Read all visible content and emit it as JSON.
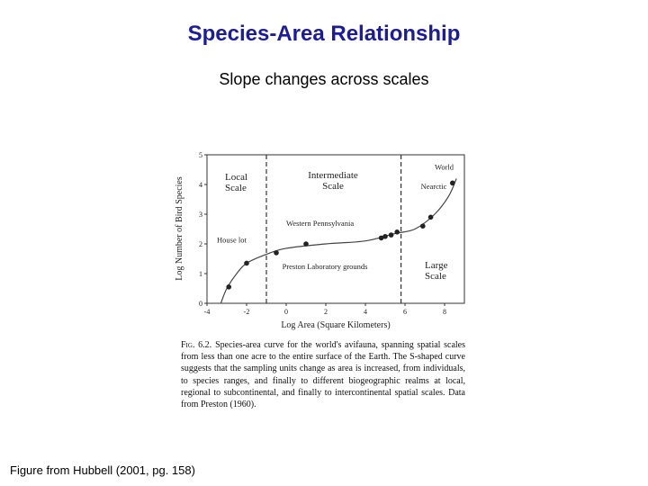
{
  "slide": {
    "title": "Species-Area Relationship",
    "subtitle": "Slope changes across scales",
    "credit": "Figure from Hubbell (2001, pg. 158)"
  },
  "figure": {
    "caption_label": "Fig. 6.2.",
    "caption_text": "Species-area curve for the world's avifauna, spanning spatial scales from less than one acre to the entire surface of the Earth. The S-shaped curve suggests that the sampling units change as area is increased, from individuals, to species ranges, and finally to different biogeographic realms at local, regional to subcontinental, and finally to intercontinental spatial scales. Data from Preston (1960)."
  },
  "chart_data": {
    "type": "scatter",
    "title": "",
    "xlabel": "Log Area (Square Kilometers)",
    "ylabel": "Log Number of Bird Species",
    "xlim": [
      -4,
      9
    ],
    "ylim": [
      0,
      5
    ],
    "x_ticks": [
      -4,
      -2,
      0,
      2,
      4,
      6,
      8
    ],
    "y_ticks": [
      0,
      1,
      2,
      3,
      4,
      5
    ],
    "scale_boundaries": [
      -1,
      5.8
    ],
    "regions": [
      {
        "label_lines": [
          "Local",
          "Scale"
        ]
      },
      {
        "label_lines": [
          "Intermediate",
          "Scale"
        ]
      },
      {
        "label_lines": [
          "Large",
          "Scale"
        ]
      }
    ],
    "points": [
      {
        "x": -2.9,
        "y": 0.55
      },
      {
        "x": -2.0,
        "y": 1.35
      },
      {
        "x": -0.5,
        "y": 1.7
      },
      {
        "x": 1.0,
        "y": 2.0
      },
      {
        "x": 4.8,
        "y": 2.2
      },
      {
        "x": 5.0,
        "y": 2.25
      },
      {
        "x": 5.3,
        "y": 2.3
      },
      {
        "x": 5.6,
        "y": 2.4
      },
      {
        "x": 6.9,
        "y": 2.6
      },
      {
        "x": 7.3,
        "y": 2.9
      },
      {
        "x": 8.4,
        "y": 4.05
      }
    ],
    "curve": [
      {
        "x": -3.3,
        "y": 0.0
      },
      {
        "x": -3.0,
        "y": 0.5
      },
      {
        "x": -2.5,
        "y": 1.0
      },
      {
        "x": -2.0,
        "y": 1.35
      },
      {
        "x": -1.0,
        "y": 1.65
      },
      {
        "x": 0.0,
        "y": 1.85
      },
      {
        "x": 2.0,
        "y": 2.0
      },
      {
        "x": 4.0,
        "y": 2.1
      },
      {
        "x": 5.5,
        "y": 2.35
      },
      {
        "x": 6.5,
        "y": 2.5
      },
      {
        "x": 7.5,
        "y": 3.0
      },
      {
        "x": 8.2,
        "y": 3.6
      },
      {
        "x": 8.6,
        "y": 4.2
      }
    ],
    "annotations": [
      {
        "text": "World",
        "x": 7.5,
        "y": 4.5
      },
      {
        "text": "Nearctic",
        "x": 6.8,
        "y": 3.85
      },
      {
        "text": "Western Pennsylvania",
        "x": 0.0,
        "y": 2.6
      },
      {
        "text": "House lot",
        "x": -3.5,
        "y": 2.05
      },
      {
        "text": "Preston  Laboratory grounds",
        "x": -0.2,
        "y": 1.15
      }
    ]
  }
}
